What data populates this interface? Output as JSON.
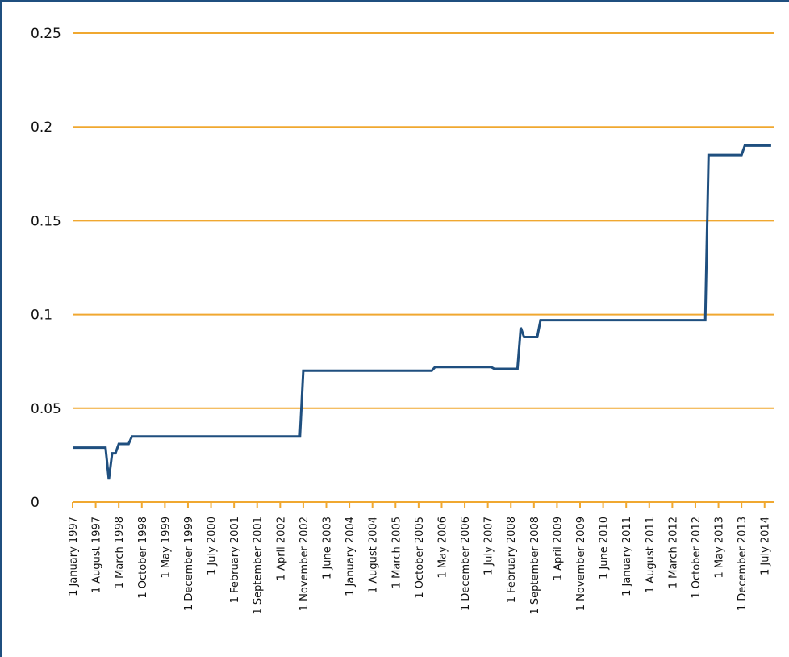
{
  "chart_data": {
    "type": "line",
    "title": "",
    "xlabel": "",
    "ylabel": "",
    "ylim": [
      0,
      0.25
    ],
    "y_ticks": [
      "0",
      "0.05",
      "0.1",
      "0.15",
      "0.2",
      "0.25"
    ],
    "grid": "horizontal",
    "x_tick_labels": [
      "1 January 1997",
      "1 August 1997",
      "1 March 1998",
      "1 October 1998",
      "1 May 1999",
      "1 December 1999",
      "1 July 2000",
      "1 February 2001",
      "1 September 2001",
      "1 April 2002",
      "1 November 2002",
      "1 June 2003",
      "1 January 2004",
      "1 August 2004",
      "1 March 2005",
      "1 October 2005",
      "1 May 2006",
      "1 December 2006",
      "1 July 2007",
      "1 February 2008",
      "1 September 2008",
      "1 April 2009",
      "1 November 2009",
      "1 June 2010",
      "1 January 2011",
      "1 August 2011",
      "1 March 2012",
      "1 October 2012",
      "1 May 2013",
      "1 December 2013",
      "1 July 2014"
    ],
    "series": [
      {
        "points": [
          {
            "x": "1997-01",
            "y": 0.029
          },
          {
            "x": "1997-11",
            "y": 0.029
          },
          {
            "x": "1997-12",
            "y": 0.012
          },
          {
            "x": "1998-01",
            "y": 0.026
          },
          {
            "x": "1998-02",
            "y": 0.026
          },
          {
            "x": "1998-03",
            "y": 0.031
          },
          {
            "x": "1998-06",
            "y": 0.031
          },
          {
            "x": "1998-07",
            "y": 0.035
          },
          {
            "x": "2002-10",
            "y": 0.035
          },
          {
            "x": "2002-11",
            "y": 0.07
          },
          {
            "x": "2006-02",
            "y": 0.07
          },
          {
            "x": "2006-03",
            "y": 0.072
          },
          {
            "x": "2007-08",
            "y": 0.072
          },
          {
            "x": "2007-09",
            "y": 0.071
          },
          {
            "x": "2008-04",
            "y": 0.071
          },
          {
            "x": "2008-05",
            "y": 0.093
          },
          {
            "x": "2008-06",
            "y": 0.088
          },
          {
            "x": "2008-10",
            "y": 0.088
          },
          {
            "x": "2008-11",
            "y": 0.097
          },
          {
            "x": "2013-01",
            "y": 0.097
          },
          {
            "x": "2013-02",
            "y": 0.185
          },
          {
            "x": "2013-12",
            "y": 0.185
          },
          {
            "x": "2014-01",
            "y": 0.19
          },
          {
            "x": "2014-09",
            "y": 0.19
          }
        ]
      }
    ],
    "colors": {
      "line": "#1f4f7f",
      "grid": "#f0a830",
      "frame": "#1f4f7f",
      "text": "#111111"
    }
  }
}
